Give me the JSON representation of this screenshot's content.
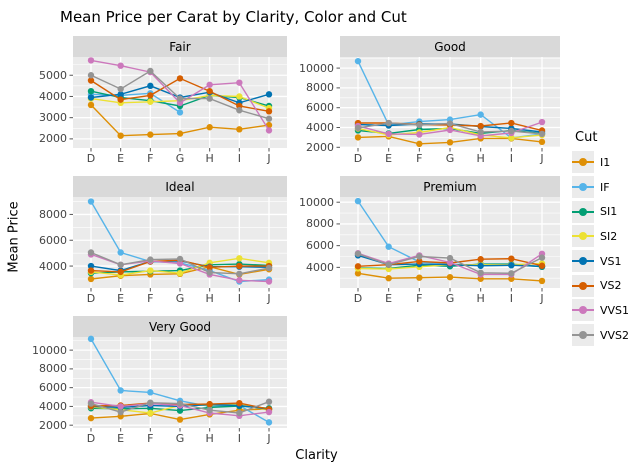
{
  "title": "Mean Price per Carat by Clarity, Color and Cut",
  "axes": {
    "x_label": "Clarity",
    "y_label": "Mean Price"
  },
  "legend": {
    "title": "Cut",
    "entries": [
      {
        "label": "I1",
        "color": "#DE8F05"
      },
      {
        "label": "IF",
        "color": "#56B4E9"
      },
      {
        "label": "SI1",
        "color": "#029E73"
      },
      {
        "label": "SI2",
        "color": "#ECE133"
      },
      {
        "label": "VS1",
        "color": "#0173B2"
      },
      {
        "label": "VS2",
        "color": "#D55E00"
      },
      {
        "label": "VVS1",
        "color": "#CC78BC"
      },
      {
        "label": "VVS2",
        "color": "#949494"
      }
    ]
  },
  "style_colors": {
    "panel_bg": "#EBEBEB",
    "strip_bg": "#D9D9D9",
    "grid": "#FFFFFF",
    "tick_mark": "#555555",
    "tick_text": "#444444"
  },
  "chart_data": {
    "type": "line",
    "x_categories": [
      "D",
      "E",
      "F",
      "G",
      "H",
      "I",
      "J"
    ],
    "facets": [
      {
        "label": "Fair",
        "yticks": [
          2000,
          3000,
          4000,
          5000
        ],
        "ylim": [
          1570,
          5860
        ],
        "series": [
          {
            "name": "I1",
            "values": [
              3600,
              2150,
              2200,
              2250,
              2550,
              2450,
              2650
            ]
          },
          {
            "name": "IF",
            "values": [
              4100,
              4050,
              4150,
              3250,
              null,
              null,
              null
            ]
          },
          {
            "name": "SI1",
            "values": [
              4250,
              3950,
              3800,
              3550,
              4050,
              3950,
              3550
            ]
          },
          {
            "name": "SI2",
            "values": [
              3900,
              3700,
              3750,
              3800,
              4050,
              4000,
              3450
            ]
          },
          {
            "name": "VS1",
            "values": [
              3950,
              4100,
              4500,
              3950,
              4200,
              3700,
              4100
            ]
          },
          {
            "name": "VS2",
            "values": [
              4750,
              3850,
              4050,
              4850,
              4250,
              3550,
              3300
            ]
          },
          {
            "name": "VVS1",
            "values": [
              5700,
              5450,
              5150,
              3700,
              4550,
              4650,
              2400
            ]
          },
          {
            "name": "VVS2",
            "values": [
              5000,
              4350,
              5200,
              3900,
              3900,
              3350,
              2950
            ]
          }
        ]
      },
      {
        "label": "Good",
        "yticks": [
          2000,
          4000,
          6000,
          8000,
          10000
        ],
        "ylim": [
          1930,
          11120
        ],
        "series": [
          {
            "name": "I1",
            "values": [
              3000,
              3100,
              2350,
              2500,
              2900,
              2900,
              2550
            ]
          },
          {
            "name": "IF",
            "values": [
              10700,
              4250,
              4600,
              4800,
              5300,
              2950,
              3350
            ]
          },
          {
            "name": "SI1",
            "values": [
              3700,
              3400,
              3800,
              3900,
              3400,
              3700,
              3400
            ]
          },
          {
            "name": "SI2",
            "values": [
              3900,
              3250,
              3500,
              4000,
              3250,
              2950,
              3250
            ]
          },
          {
            "name": "VS1",
            "values": [
              4300,
              4200,
              4350,
              4350,
              4100,
              3900,
              3550
            ]
          },
          {
            "name": "VS2",
            "values": [
              4450,
              4450,
              4300,
              4250,
              4150,
              4450,
              3700
            ]
          },
          {
            "name": "VVS1",
            "values": [
              4150,
              3350,
              3300,
              3750,
              3150,
              3450,
              4550
            ]
          },
          {
            "name": "VVS2",
            "values": [
              3950,
              4450,
              4250,
              4400,
              3550,
              3650,
              3350
            ]
          }
        ]
      },
      {
        "label": "Ideal",
        "yticks": [
          4000,
          6000,
          8000
        ],
        "ylim": [
          2300,
          9350
        ],
        "series": [
          {
            "name": "I1",
            "values": [
              3000,
              3250,
              3350,
              3400,
              3950,
              3350,
              3750
            ]
          },
          {
            "name": "IF",
            "values": [
              9000,
              5050,
              4350,
              4250,
              3650,
              2800,
              2950
            ]
          },
          {
            "name": "SI1",
            "values": [
              3450,
              3550,
              3600,
              3650,
              4100,
              4150,
              4050
            ]
          },
          {
            "name": "SI2",
            "values": [
              3550,
              3300,
              3650,
              3450,
              4250,
              4600,
              4250
            ]
          },
          {
            "name": "VS1",
            "values": [
              4000,
              3650,
              4350,
              4400,
              3950,
              3950,
              3900
            ]
          },
          {
            "name": "VS2",
            "values": [
              3650,
              3550,
              4350,
              4450,
              3900,
              4000,
              4000
            ]
          },
          {
            "name": "VVS1",
            "values": [
              4900,
              4100,
              4400,
              4200,
              3350,
              2900,
              2800
            ]
          },
          {
            "name": "VVS2",
            "values": [
              5050,
              4100,
              4500,
              4550,
              3500,
              3400,
              3850
            ]
          }
        ]
      },
      {
        "label": "Premium",
        "yticks": [
          4000,
          6000,
          8000,
          10000
        ],
        "ylim": [
          2100,
          10480
        ],
        "series": [
          {
            "name": "I1",
            "values": [
              3450,
              3000,
              3050,
              3100,
              2950,
              2950,
              2750
            ]
          },
          {
            "name": "IF",
            "values": [
              10100,
              5900,
              4500,
              4300,
              4150,
              4200,
              4100
            ]
          },
          {
            "name": "SI1",
            "values": [
              3950,
              3900,
              4200,
              4100,
              4300,
              4300,
              4050
            ]
          },
          {
            "name": "SI2",
            "values": [
              3900,
              3850,
              4050,
              4250,
              4250,
              4250,
              4350
            ]
          },
          {
            "name": "VS1",
            "values": [
              5100,
              4250,
              4300,
              4250,
              4150,
              4200,
              4100
            ]
          },
          {
            "name": "VS2",
            "values": [
              4100,
              4250,
              4550,
              4400,
              4750,
              4800,
              4150
            ]
          },
          {
            "name": "VVS1",
            "values": [
              5300,
              4350,
              5100,
              4450,
              3350,
              3350,
              5250
            ]
          },
          {
            "name": "VVS2",
            "values": [
              5250,
              4250,
              5000,
              4850,
              3500,
              3450,
              4900
            ]
          }
        ]
      },
      {
        "label": "Very Good",
        "yticks": [
          2000,
          4000,
          6000,
          8000,
          10000
        ],
        "ylim": [
          1700,
          11400
        ],
        "series": [
          {
            "name": "I1",
            "values": [
              2750,
              2950,
              3250,
              2600,
              3150,
              3600,
              3750
            ]
          },
          {
            "name": "IF",
            "values": [
              11200,
              5700,
              5500,
              4600,
              4000,
              4100,
              2300
            ]
          },
          {
            "name": "SI1",
            "values": [
              3800,
              3750,
              3800,
              3550,
              3900,
              4050,
              3800
            ]
          },
          {
            "name": "SI2",
            "values": [
              3950,
              3650,
              3300,
              4100,
              4150,
              4200,
              3600
            ]
          },
          {
            "name": "VS1",
            "values": [
              4000,
              3900,
              4100,
              4000,
              4200,
              4100,
              3700
            ]
          },
          {
            "name": "VS2",
            "values": [
              4050,
              4100,
              4350,
              4200,
              4250,
              4350,
              3700
            ]
          },
          {
            "name": "VVS1",
            "values": [
              4450,
              4000,
              4300,
              4100,
              3300,
              3000,
              3400
            ]
          },
          {
            "name": "VVS2",
            "values": [
              4300,
              3400,
              4400,
              4300,
              3600,
              3300,
              4500
            ]
          }
        ]
      }
    ]
  }
}
